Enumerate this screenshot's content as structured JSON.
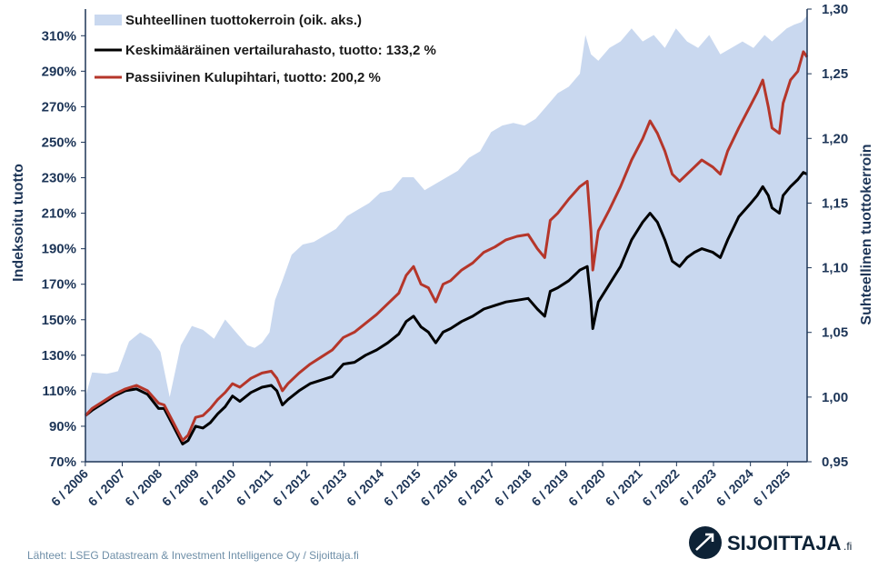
{
  "chart_data": {
    "type": "line",
    "title": "",
    "ylabel": "Indeksoitu tuotto",
    "y2label": "Suhteellinen tuottokerroin",
    "ylim": [
      70,
      325
    ],
    "y2lim": [
      0.95,
      1.3
    ],
    "yticks": [
      "70%",
      "90%",
      "110%",
      "130%",
      "150%",
      "170%",
      "190%",
      "210%",
      "230%",
      "250%",
      "270%",
      "290%",
      "310%"
    ],
    "y2ticks": [
      "0,95",
      "1,00",
      "1,05",
      "1,10",
      "1,15",
      "1,20",
      "1,25",
      "1,30"
    ],
    "xticks": [
      "6 / 2006",
      "6 / 2007",
      "6 / 2008",
      "6 / 2009",
      "6 / 2010",
      "6 / 2011",
      "6 / 2012",
      "6 / 2013",
      "6 / 2014",
      "6 / 2015",
      "6 / 2016",
      "6 / 2017",
      "6 / 2018",
      "6 / 2019",
      "6 / 2020",
      "6 / 2021",
      "6 / 2022",
      "6 / 2023",
      "6 / 2024",
      "6 / 2025"
    ],
    "xrange": [
      2006.42,
      2025.95
    ],
    "series": [
      {
        "name": "Suhteellinen tuottokerroin (oik. aks.)",
        "axis": "right",
        "style": "area",
        "color": "#c9d8ef",
        "x": [
          2006.42,
          2006.6,
          2007.0,
          2007.3,
          2007.6,
          2007.9,
          2008.2,
          2008.45,
          2008.7,
          2009.0,
          2009.3,
          2009.6,
          2009.9,
          2010.2,
          2010.5,
          2010.8,
          2011.0,
          2011.2,
          2011.4,
          2011.55,
          2011.75,
          2012.0,
          2012.3,
          2012.6,
          2012.9,
          2013.2,
          2013.5,
          2013.8,
          2014.1,
          2014.4,
          2014.7,
          2015.0,
          2015.3,
          2015.6,
          2015.9,
          2016.2,
          2016.5,
          2016.8,
          2017.1,
          2017.4,
          2017.7,
          2018.0,
          2018.3,
          2018.6,
          2018.9,
          2019.2,
          2019.5,
          2019.8,
          2019.95,
          2020.1,
          2020.3,
          2020.6,
          2020.9,
          2021.2,
          2021.5,
          2021.8,
          2022.1,
          2022.4,
          2022.7,
          2023.0,
          2023.3,
          2023.6,
          2023.9,
          2024.2,
          2024.5,
          2024.8,
          2025.0,
          2025.2,
          2025.4,
          2025.6,
          2025.8,
          2025.95
        ],
        "y": [
          1.0,
          1.019,
          1.018,
          1.02,
          1.043,
          1.05,
          1.045,
          1.035,
          1.0,
          1.04,
          1.055,
          1.052,
          1.045,
          1.06,
          1.05,
          1.04,
          1.038,
          1.042,
          1.05,
          1.075,
          1.09,
          1.11,
          1.118,
          1.12,
          1.125,
          1.13,
          1.14,
          1.145,
          1.15,
          1.158,
          1.16,
          1.17,
          1.17,
          1.16,
          1.165,
          1.17,
          1.175,
          1.185,
          1.19,
          1.205,
          1.21,
          1.212,
          1.21,
          1.215,
          1.225,
          1.235,
          1.24,
          1.25,
          1.28,
          1.265,
          1.26,
          1.27,
          1.275,
          1.285,
          1.275,
          1.28,
          1.27,
          1.285,
          1.275,
          1.27,
          1.28,
          1.265,
          1.27,
          1.275,
          1.27,
          1.28,
          1.275,
          1.28,
          1.285,
          1.288,
          1.29,
          1.295
        ]
      },
      {
        "name": "Keskimääräinen vertailurahasto, tuotto: 133,2 %",
        "axis": "left",
        "style": "line",
        "color": "#000000",
        "x": [
          2006.42,
          2006.6,
          2006.9,
          2007.2,
          2007.5,
          2007.8,
          2008.1,
          2008.4,
          2008.55,
          2008.8,
          2009.05,
          2009.2,
          2009.4,
          2009.6,
          2009.8,
          2010.0,
          2010.2,
          2010.4,
          2010.6,
          2010.9,
          2011.2,
          2011.45,
          2011.6,
          2011.75,
          2011.9,
          2012.2,
          2012.5,
          2012.8,
          2013.1,
          2013.4,
          2013.7,
          2014.0,
          2014.3,
          2014.6,
          2014.9,
          2015.1,
          2015.3,
          2015.5,
          2015.7,
          2015.9,
          2016.1,
          2016.3,
          2016.6,
          2016.9,
          2017.2,
          2017.5,
          2017.8,
          2018.1,
          2018.4,
          2018.65,
          2018.85,
          2019.0,
          2019.2,
          2019.5,
          2019.8,
          2020.0,
          2020.1,
          2020.15,
          2020.3,
          2020.6,
          2020.9,
          2021.2,
          2021.5,
          2021.7,
          2021.9,
          2022.1,
          2022.3,
          2022.5,
          2022.7,
          2022.9,
          2023.1,
          2023.4,
          2023.6,
          2023.8,
          2024.1,
          2024.4,
          2024.6,
          2024.75,
          2024.9,
          2025.0,
          2025.2,
          2025.3,
          2025.5,
          2025.7,
          2025.85,
          2025.95
        ],
        "y": [
          96,
          99,
          103,
          107,
          110,
          111,
          108,
          100,
          100,
          90,
          80,
          82,
          90,
          89,
          92,
          97,
          101,
          107,
          104,
          109,
          112,
          113,
          110,
          102,
          105,
          110,
          114,
          116,
          118,
          125,
          126,
          130,
          133,
          137,
          142,
          149,
          152,
          146,
          143,
          137,
          143,
          145,
          149,
          152,
          156,
          158,
          160,
          161,
          162,
          156,
          152,
          166,
          168,
          172,
          178,
          180,
          160,
          145,
          160,
          170,
          180,
          195,
          205,
          210,
          205,
          195,
          183,
          180,
          185,
          188,
          190,
          188,
          185,
          195,
          208,
          215,
          220,
          225,
          220,
          213,
          210,
          220,
          225,
          229,
          233,
          232
        ]
      },
      {
        "name": "Passiivinen Kulupihtari, tuotto: 200,2 %",
        "axis": "left",
        "style": "line",
        "color": "#b5362a",
        "x": [
          2006.42,
          2006.6,
          2006.9,
          2007.2,
          2007.5,
          2007.8,
          2008.1,
          2008.4,
          2008.55,
          2008.8,
          2009.05,
          2009.2,
          2009.4,
          2009.6,
          2009.8,
          2010.0,
          2010.2,
          2010.4,
          2010.6,
          2010.9,
          2011.2,
          2011.45,
          2011.6,
          2011.75,
          2011.9,
          2012.2,
          2012.5,
          2012.8,
          2013.1,
          2013.4,
          2013.7,
          2014.0,
          2014.3,
          2014.6,
          2014.9,
          2015.1,
          2015.3,
          2015.5,
          2015.7,
          2015.9,
          2016.1,
          2016.3,
          2016.6,
          2016.9,
          2017.2,
          2017.5,
          2017.8,
          2018.1,
          2018.4,
          2018.65,
          2018.85,
          2019.0,
          2019.2,
          2019.5,
          2019.8,
          2020.0,
          2020.1,
          2020.15,
          2020.3,
          2020.6,
          2020.9,
          2021.2,
          2021.5,
          2021.7,
          2021.9,
          2022.1,
          2022.3,
          2022.5,
          2022.7,
          2022.9,
          2023.1,
          2023.4,
          2023.6,
          2023.8,
          2024.1,
          2024.4,
          2024.6,
          2024.75,
          2024.9,
          2025.0,
          2025.2,
          2025.3,
          2025.5,
          2025.7,
          2025.85,
          2025.95
        ],
        "y": [
          96,
          100,
          104,
          108,
          111,
          113,
          110,
          103,
          102,
          92,
          82,
          85,
          95,
          96,
          100,
          105,
          109,
          114,
          112,
          117,
          120,
          121,
          117,
          110,
          114,
          120,
          125,
          129,
          133,
          140,
          143,
          148,
          153,
          159,
          165,
          175,
          180,
          170,
          168,
          160,
          170,
          172,
          178,
          182,
          188,
          191,
          195,
          197,
          198,
          190,
          185,
          206,
          210,
          218,
          225,
          228,
          200,
          178,
          200,
          212,
          225,
          240,
          252,
          262,
          255,
          245,
          232,
          228,
          232,
          236,
          240,
          236,
          232,
          245,
          258,
          270,
          278,
          285,
          270,
          258,
          255,
          272,
          285,
          290,
          301,
          298
        ]
      }
    ]
  },
  "source": "Lähteet: LSEG Datastream & Investment Intelligence Oy / Sijoittaja.fi",
  "brand": {
    "name": "SIJOITTAJA",
    "suffix": ".fi"
  }
}
